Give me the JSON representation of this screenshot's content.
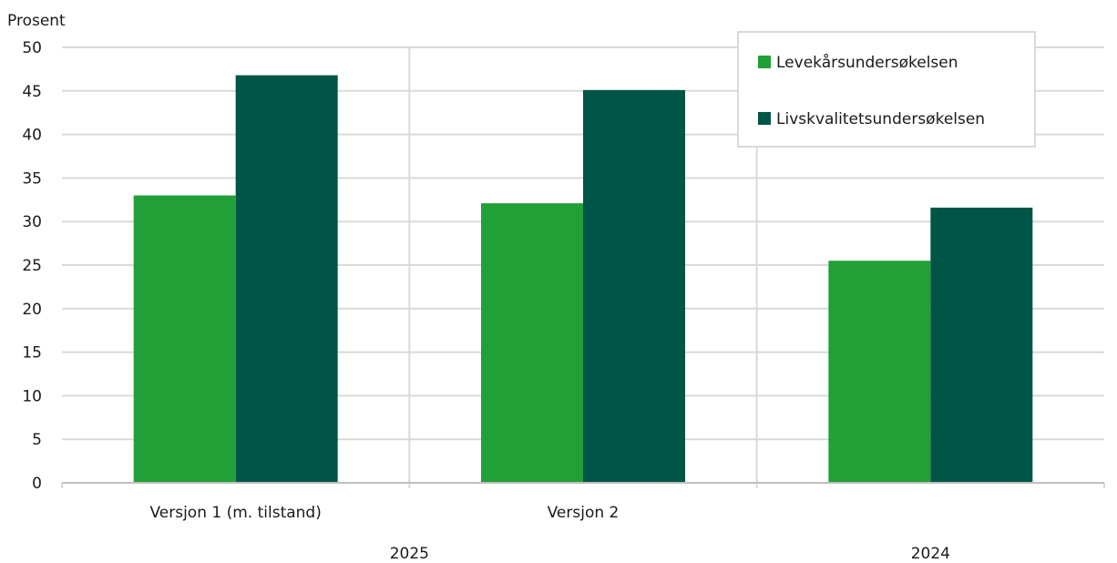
{
  "chart_data": {
    "type": "bar",
    "ylabel": "Prosent",
    "ylim": [
      0,
      50
    ],
    "yticks": [
      0,
      5,
      10,
      15,
      20,
      25,
      30,
      35,
      40,
      45,
      50
    ],
    "categories": [
      "Versjon 1 (m. tilstand)",
      "Versjon 2",
      ""
    ],
    "groups": [
      {
        "label": "2025",
        "categories": [
          0,
          1
        ]
      },
      {
        "label": "2024",
        "categories": [
          2
        ]
      }
    ],
    "series": [
      {
        "name": "Levekårsundersøkelsen",
        "color": "#22a038",
        "values": [
          33.0,
          32.1,
          25.5
        ]
      },
      {
        "name": "Livskvalitetsundersøkelsen",
        "color": "#005646",
        "values": [
          46.8,
          45.1,
          31.6
        ]
      }
    ],
    "grid": true,
    "legend_position": "top-right"
  }
}
